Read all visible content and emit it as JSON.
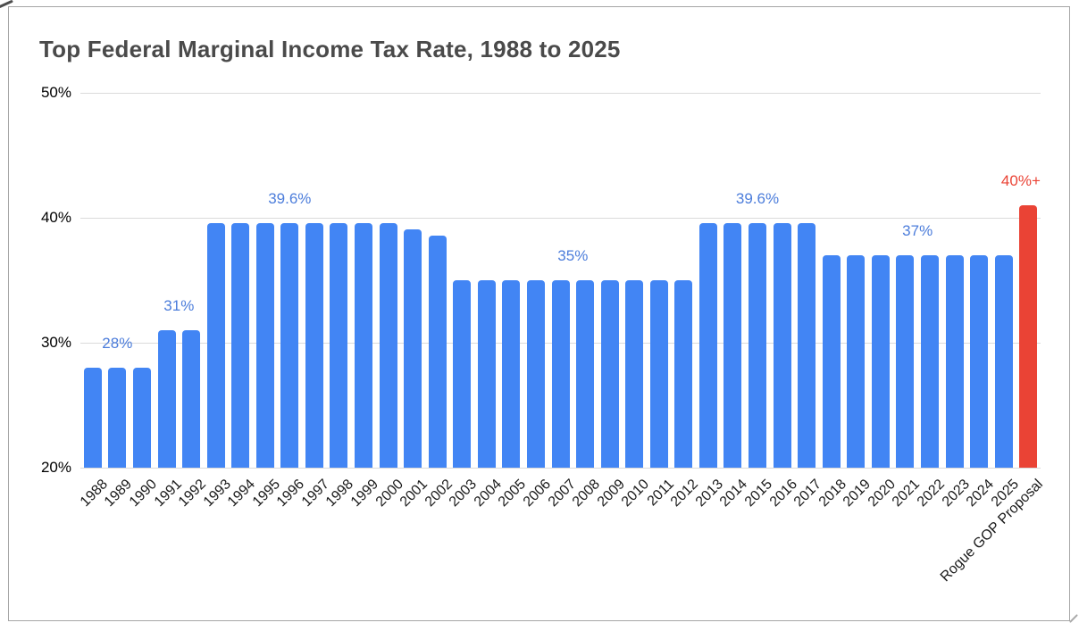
{
  "chart_data": {
    "type": "bar",
    "title": "Top Federal Marginal Income Tax Rate, 1988 to 2025",
    "categories": [
      "1988",
      "1989",
      "1990",
      "1991",
      "1992",
      "1993",
      "1994",
      "1995",
      "1996",
      "1997",
      "1998",
      "1999",
      "2000",
      "2001",
      "2002",
      "2003",
      "2004",
      "2005",
      "2006",
      "2007",
      "2008",
      "2009",
      "2010",
      "2011",
      "2012",
      "2013",
      "2014",
      "2015",
      "2016",
      "2017",
      "2018",
      "2019",
      "2020",
      "2021",
      "2022",
      "2023",
      "2024",
      "2025",
      "Rogue GOP Proposal"
    ],
    "values": [
      28,
      28,
      28,
      31,
      31,
      39.6,
      39.6,
      39.6,
      39.6,
      39.6,
      39.6,
      39.6,
      39.6,
      39.1,
      38.6,
      35,
      35,
      35,
      35,
      35,
      35,
      35,
      35,
      35,
      35,
      39.6,
      39.6,
      39.6,
      39.6,
      39.6,
      37,
      37,
      37,
      37,
      37,
      37,
      37,
      37,
      41
    ],
    "xlabel": "",
    "ylabel": "",
    "ylim": [
      20,
      50
    ],
    "yticks": [
      {
        "value": 20,
        "label": "20%"
      },
      {
        "value": 30,
        "label": "30%"
      },
      {
        "value": 40,
        "label": "40%"
      },
      {
        "value": 50,
        "label": "50%"
      }
    ],
    "grid": true,
    "legend_position": "none",
    "highlight": {
      "index": 38,
      "label": "40%+"
    },
    "annotations": [
      {
        "text": "28%",
        "index": 1,
        "value": 28,
        "role": "normal"
      },
      {
        "text": "31%",
        "index": 3.5,
        "value": 31,
        "role": "normal"
      },
      {
        "text": "39.6%",
        "index": 8,
        "value": 39.6,
        "role": "normal"
      },
      {
        "text": "35%",
        "index": 19.5,
        "value": 35,
        "role": "normal"
      },
      {
        "text": "39.6%",
        "index": 27,
        "value": 39.6,
        "role": "normal"
      },
      {
        "text": "37%",
        "index": 33.5,
        "value": 37,
        "role": "normal"
      },
      {
        "text": "40%+",
        "index": 37.7,
        "value": 41,
        "role": "highlight"
      }
    ],
    "colors": {
      "bar": "#4285F4",
      "highlight_bar": "#EA4335",
      "data_label_blue": "#4c7ddb",
      "data_label_red": "#EA4335",
      "grid": "#dadada",
      "title_text": "#4a4a4a",
      "axis_text": "#000000",
      "frame_border": "#a6a6a6"
    }
  }
}
